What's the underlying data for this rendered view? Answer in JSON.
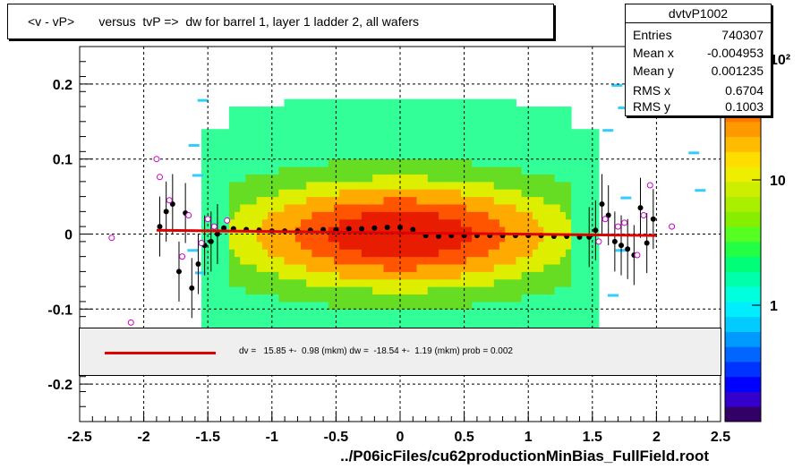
{
  "title": "<v - vP>       versus  tvP =>  dw for barrel 1, layer 1 ladder 2, all wafers",
  "stats": {
    "name": "dvtvP1002",
    "rows": [
      {
        "label": "Entries",
        "value": "740307"
      },
      {
        "label": "Mean x",
        "value": "-0.004953"
      },
      {
        "label": "Mean y",
        "value": "0.001235"
      },
      {
        "label": "RMS x",
        "value": "0.6704"
      },
      {
        "label": "RMS y",
        "value": "0.1003"
      }
    ]
  },
  "fit_legend": "dv =   15.85 +-  0.98 (mkm) dw =  -18.54 +-  1.19 (mkm) prob = 0.002",
  "colors": {
    "fit_line": "#e00000",
    "points": "#000000",
    "open_points": "#cc00cc"
  },
  "chart_data": {
    "type": "heatmap",
    "title": "<v - vP>       versus  tvP =>  dw for barrel 1, layer 1 ladder 2, all wafers",
    "xlabel": "../P06icFiles/cu62productionMinBias_FullField.root",
    "ylabel": "",
    "xlim": [
      -2.5,
      2.5
    ],
    "ylim": [
      -0.25,
      0.25
    ],
    "x_ticks": [
      "-2.5",
      "-2",
      "-1.5",
      "-1",
      "-0.5",
      "0",
      "0.5",
      "1",
      "1.5",
      "2",
      "2.5"
    ],
    "y_ticks": [
      "-0.2",
      "-0.1",
      "0",
      "0.1",
      "0.2"
    ],
    "z_scale": "log",
    "z_ticks": [
      "1",
      "10",
      "10²"
    ],
    "grid": true,
    "profile_points": [
      {
        "x": -1.875,
        "y": 0.01
      },
      {
        "x": -1.825,
        "y": 0.03
      },
      {
        "x": -1.775,
        "y": 0.04
      },
      {
        "x": -1.725,
        "y": -0.05
      },
      {
        "x": -1.675,
        "y": 0.028
      },
      {
        "x": -1.625,
        "y": -0.072
      },
      {
        "x": -1.575,
        "y": -0.04
      },
      {
        "x": -1.525,
        "y": -0.015
      },
      {
        "x": -1.475,
        "y": -0.01
      },
      {
        "x": -1.425,
        "y": 0.0
      },
      {
        "x": -1.375,
        "y": 0.008
      },
      {
        "x": -1.3,
        "y": 0.007
      },
      {
        "x": -1.2,
        "y": 0.006
      },
      {
        "x": -1.1,
        "y": 0.005
      },
      {
        "x": -1.0,
        "y": 0.004
      },
      {
        "x": -0.9,
        "y": 0.004
      },
      {
        "x": -0.8,
        "y": 0.004
      },
      {
        "x": -0.7,
        "y": 0.005
      },
      {
        "x": -0.6,
        "y": 0.006
      },
      {
        "x": -0.5,
        "y": 0.006
      },
      {
        "x": -0.4,
        "y": 0.007
      },
      {
        "x": -0.3,
        "y": 0.007
      },
      {
        "x": -0.2,
        "y": 0.008
      },
      {
        "x": -0.1,
        "y": 0.009
      },
      {
        "x": 0.0,
        "y": 0.009
      },
      {
        "x": 0.1,
        "y": 0.006
      },
      {
        "x": 0.2,
        "y": -0.002
      },
      {
        "x": 0.3,
        "y": -0.003
      },
      {
        "x": 0.4,
        "y": -0.002
      },
      {
        "x": 0.5,
        "y": -0.002
      },
      {
        "x": 0.6,
        "y": -0.002
      },
      {
        "x": 0.7,
        "y": -0.002
      },
      {
        "x": 0.8,
        "y": -0.002
      },
      {
        "x": 0.9,
        "y": -0.002
      },
      {
        "x": 1.0,
        "y": -0.002
      },
      {
        "x": 1.1,
        "y": -0.002
      },
      {
        "x": 1.2,
        "y": -0.003
      },
      {
        "x": 1.3,
        "y": -0.003
      },
      {
        "x": 1.4,
        "y": -0.004
      },
      {
        "x": 1.475,
        "y": -0.004
      },
      {
        "x": 1.525,
        "y": 0.005
      },
      {
        "x": 1.575,
        "y": 0.04
      },
      {
        "x": 1.625,
        "y": 0.025
      },
      {
        "x": 1.675,
        "y": -0.01
      },
      {
        "x": 1.725,
        "y": -0.015
      },
      {
        "x": 1.775,
        "y": -0.02
      },
      {
        "x": 1.825,
        "y": -0.028
      },
      {
        "x": 1.875,
        "y": 0.035
      },
      {
        "x": 1.925,
        "y": -0.012
      },
      {
        "x": 1.975,
        "y": 0.02
      }
    ],
    "open_points": [
      {
        "x": -2.25,
        "y": -0.005
      },
      {
        "x": -2.1,
        "y": -0.118
      },
      {
        "x": -1.9,
        "y": 0.1
      },
      {
        "x": -1.875,
        "y": 0.076
      },
      {
        "x": -1.8,
        "y": 0.045
      },
      {
        "x": -1.7,
        "y": -0.03
      },
      {
        "x": -1.65,
        "y": 0.025
      },
      {
        "x": -1.55,
        "y": -0.012
      },
      {
        "x": -1.5,
        "y": 0.02
      },
      {
        "x": -1.45,
        "y": 0.01
      },
      {
        "x": -1.35,
        "y": 0.018
      },
      {
        "x": 1.55,
        "y": -0.01
      },
      {
        "x": 1.6,
        "y": 0.02
      },
      {
        "x": 1.7,
        "y": 0.01
      },
      {
        "x": 1.75,
        "y": 0.015
      },
      {
        "x": 1.85,
        "y": -0.028
      },
      {
        "x": 1.9,
        "y": 0.025
      },
      {
        "x": 1.95,
        "y": 0.065
      },
      {
        "x": 2.05,
        "y": 0.16
      },
      {
        "x": 2.12,
        "y": 0.01
      }
    ],
    "fit_line": {
      "x": [
        -1.9,
        2.0
      ],
      "y": [
        0.005,
        -0.002
      ]
    }
  }
}
